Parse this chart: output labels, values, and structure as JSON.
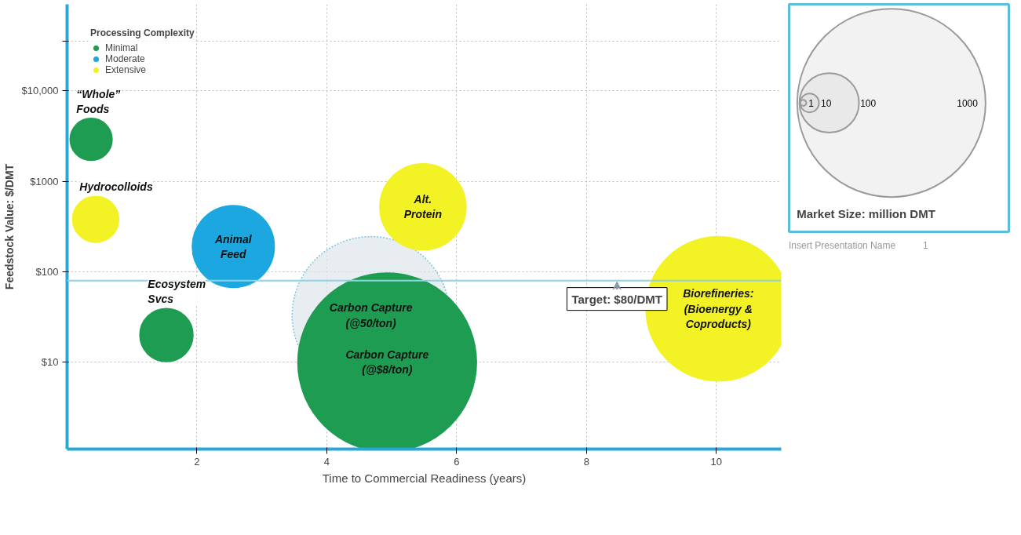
{
  "chart_data": {
    "type": "bubble",
    "xlabel": "Time to Commercial Readiness (years)",
    "ylabel": "Feedstock Value: $/DMT",
    "legend_title": "Processing Complexity",
    "legend": "top left",
    "grid": true,
    "log": "y",
    "xlim": [
      0,
      11
    ],
    "xticks": [
      2,
      4,
      6,
      8,
      10
    ],
    "ylim": [
      1.1,
      90000
    ],
    "yticks": [
      {
        "value": 10,
        "label": "$10"
      },
      {
        "value": 100,
        "label": "$100"
      },
      {
        "value": 1000,
        "label": "$1000"
      },
      {
        "value": 10000,
        "label": "$10,000"
      },
      {
        "value": 35000,
        "label": null
      }
    ],
    "size_legend": [
      1,
      10,
      100,
      1000
    ],
    "series": [
      {
        "name": "Minimal",
        "color": "#1e9c52",
        "x": [
          0.37,
          1.53,
          4.93
        ],
        "values": [
          2900,
          20,
          10
        ],
        "sizes": [
          50,
          80,
          900
        ]
      },
      {
        "name": "Moderate",
        "color": "#1ca7e0",
        "x": [
          2.56
        ],
        "values": [
          190
        ],
        "sizes": [
          190
        ]
      },
      {
        "name": "Extensive",
        "color": "#f2f224",
        "x": [
          0.44,
          5.48,
          10.03
        ],
        "values": [
          380,
          520,
          39
        ],
        "sizes": [
          60,
          210,
          590
        ]
      },
      {
        "color": "#dde6ea",
        "x": [
          4.68
        ],
        "values": [
          33
        ],
        "sizes": [
          700
        ]
      }
    ],
    "ref_lines": [
      {
        "axis": "y",
        "value": 80,
        "label": "Target: $80/DMT",
        "color": "#8fd3e3"
      }
    ],
    "annotations": [
      {
        "text": "“Whole”\nFoods",
        "x": 0.37,
        "y": 2900
      },
      {
        "text": "Hydrocolloids",
        "x": 0.44,
        "y": 380
      },
      {
        "text": "Animal\nFeed",
        "x": 2.56,
        "y": 190
      },
      {
        "text": "Ecosystem\nSvcs",
        "x": 1.53,
        "y": 20
      },
      {
        "text": "Carbon Capture\n(@$8/ton)",
        "x": 4.93,
        "y": 10
      },
      {
        "text": "Carbon Capture\n(@50/ton)",
        "x": 4.68,
        "y": 33
      },
      {
        "text": "Alt.\nProtein",
        "x": 5.48,
        "y": 520
      },
      {
        "text": "Biorefineries:\n(Bioenergy &\nCoproducts)",
        "x": 10.03,
        "y": 39
      },
      "Market Size: million DMT",
      "Insert Presentation Name",
      "1"
    ]
  }
}
